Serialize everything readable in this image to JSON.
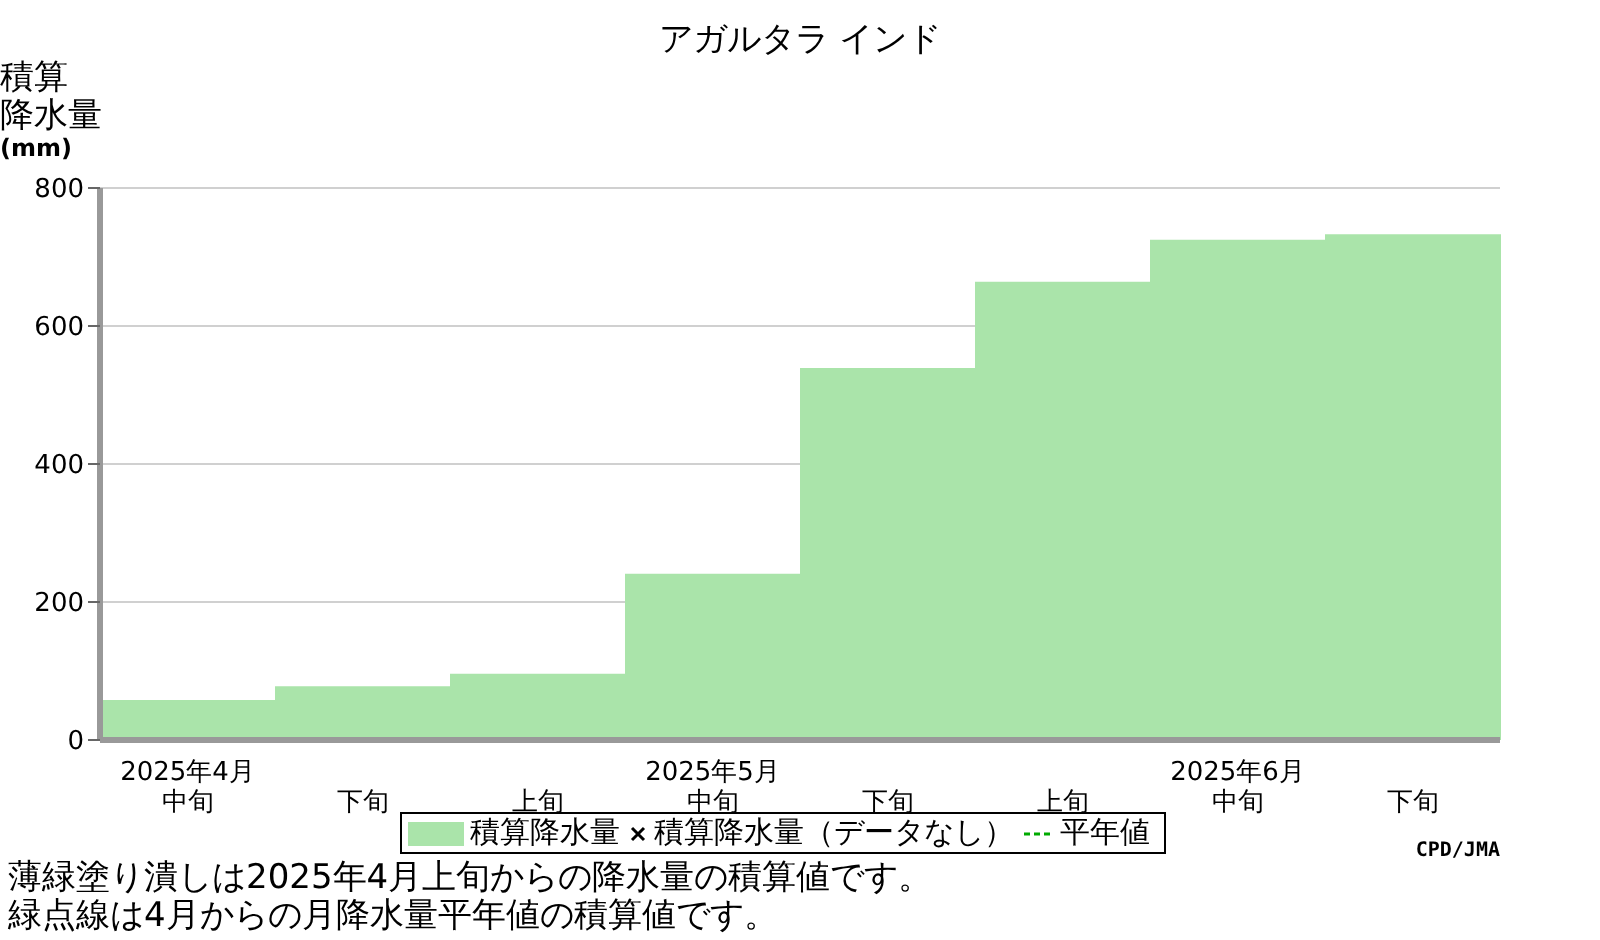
{
  "chart_data": {
    "type": "bar",
    "title": "アガルタラ インド",
    "ylabel": "積算降水量(mm)",
    "categories": [
      "2025年4月中旬",
      "下旬",
      "上旬",
      "2025年5月中旬",
      "下旬",
      "上旬",
      "2025年6月中旬",
      "下旬"
    ],
    "series": [
      {
        "name": "積算降水量",
        "color": "#aae4aa",
        "values": [
          58,
          78,
          96,
          241,
          539,
          664,
          725,
          733
        ]
      },
      {
        "name": "積算降水量（データなし）",
        "type": "scatter",
        "color": "#000000",
        "marker": "cross",
        "values": [
          null,
          null,
          null,
          null,
          null,
          null,
          null,
          null
        ]
      },
      {
        "name": "平年値",
        "type": "line",
        "color": "#00aa00",
        "line_style": "dashed",
        "values": [
          null,
          null,
          null,
          null,
          null,
          null,
          null,
          null
        ]
      }
    ],
    "ylim": [
      0,
      800
    ],
    "yticks": [
      0,
      200,
      400,
      600,
      800
    ],
    "grid": "y",
    "legend": "bottom",
    "annotations": [
      "CPD/JMA",
      "薄緑塗り潰しは2025年4月上旬からの降水量の積算値です。",
      "緑点線は4月からの月降水量平年値の積算値です。"
    ]
  }
}
